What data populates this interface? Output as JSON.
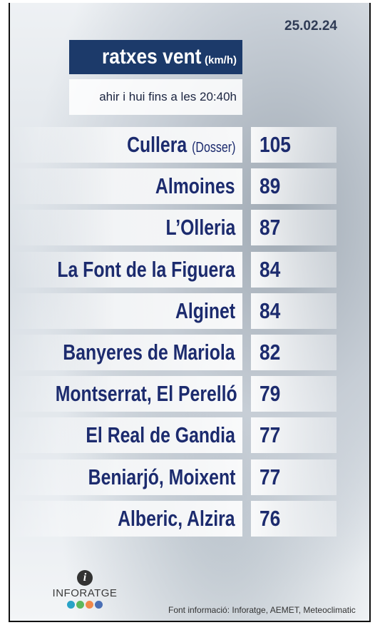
{
  "date": "25.02.24",
  "header": {
    "title": "ratxes vent",
    "unit": "(km/h)",
    "subtitle": "ahir i hui fins a les 20:40h"
  },
  "table": {
    "rows": [
      {
        "name": "Cullera",
        "note": "(Dosser)",
        "value": 105
      },
      {
        "name": "Almoines",
        "value": 89
      },
      {
        "name": "L’Olleria",
        "value": 87
      },
      {
        "name": "La Font de la Figuera",
        "value": 84
      },
      {
        "name": "Alginet",
        "value": 84
      },
      {
        "name": "Banyeres de Mariola",
        "value": 82
      },
      {
        "name": "Montserrat, El Perelló",
        "value": 79
      },
      {
        "name": "El Real de Gandia",
        "value": 77
      },
      {
        "name": "Beniarjó, Moixent",
        "value": 77
      },
      {
        "name": "Alberic, Alzira",
        "value": 76
      }
    ]
  },
  "logo": {
    "text": "INFORATGE"
  },
  "footer": {
    "source": "Font informació: Inforatge, AEMET, Meteoclimatic"
  }
}
